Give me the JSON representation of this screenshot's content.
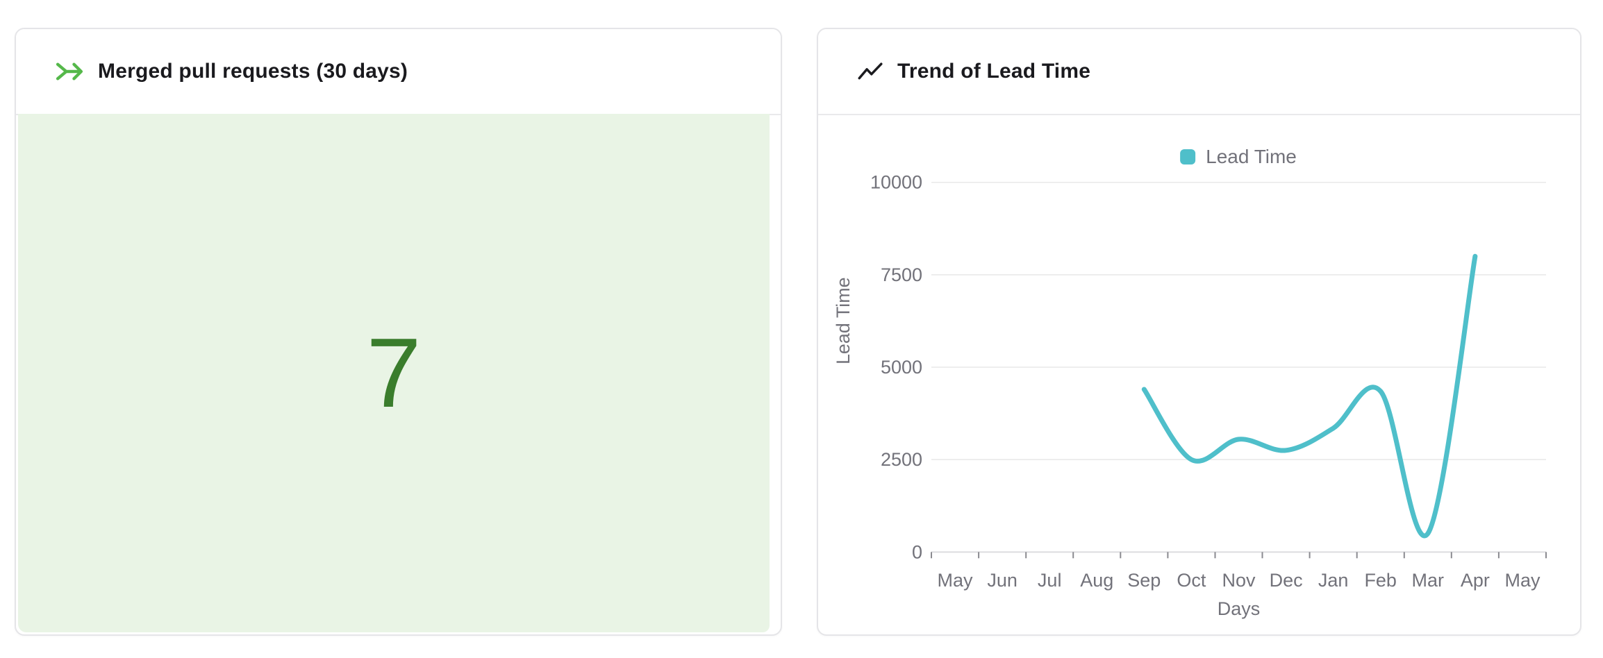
{
  "left_card": {
    "title": "Merged pull requests (30 days)",
    "value": "7",
    "accent_green": "#55b84a",
    "value_green": "#3a7d2c",
    "panel_bg": "#e9f4e5"
  },
  "right_card": {
    "title": "Trend of Lead Time",
    "legend_label": "Lead Time",
    "line_color": "#4fbfca"
  },
  "chart_data": {
    "type": "line",
    "title": "Trend of Lead Time",
    "x": [
      "May",
      "Jun",
      "Jul",
      "Aug",
      "Sep",
      "Oct",
      "Nov",
      "Dec",
      "Jan",
      "Feb",
      "Mar",
      "Apr",
      "May"
    ],
    "series": [
      {
        "name": "Lead Time",
        "color": "#4fbfca",
        "values": [
          null,
          null,
          null,
          null,
          4400,
          2500,
          3050,
          2750,
          3350,
          4350,
          500,
          8000,
          null
        ]
      }
    ],
    "xlabel": "Days",
    "ylabel": "Lead Time",
    "ylim": [
      0,
      10000
    ],
    "yticks": [
      0,
      2500,
      5000,
      7500,
      10000
    ],
    "grid": true,
    "smooth": true,
    "legend_position": "top-center",
    "axis_text_color": "#72727a",
    "grid_color": "#e8e8e8",
    "axis_line_color": "#dcdcdf",
    "tick_color": "#8a8a90"
  }
}
